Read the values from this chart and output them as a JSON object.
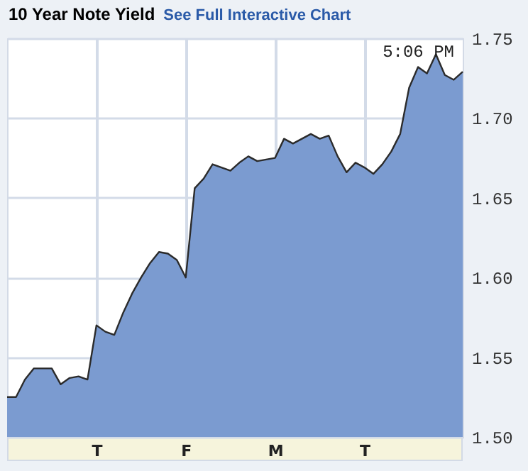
{
  "chart_data": {
    "type": "area",
    "title": "10 Year Note Yield",
    "subtitle": "See Full Interactive Chart",
    "annotations": [
      "5:06 PM"
    ],
    "categories": [
      null,
      null,
      null,
      null,
      null,
      null,
      null,
      null,
      null,
      null,
      "T",
      null,
      null,
      null,
      null,
      null,
      null,
      null,
      null,
      null,
      "F",
      null,
      null,
      null,
      null,
      null,
      null,
      null,
      null,
      null,
      "M",
      null,
      null,
      null,
      null,
      null,
      null,
      null,
      null,
      null,
      "T",
      null,
      null,
      null,
      null,
      null,
      null,
      null,
      null,
      null,
      null,
      null
    ],
    "series": [
      {
        "color": "#7b9bd0",
        "values": [
          1.525,
          1.525,
          1.536,
          1.543,
          1.543,
          1.543,
          1.533,
          1.537,
          1.538,
          1.536,
          1.57,
          1.566,
          1.564,
          1.578,
          1.59,
          1.6,
          1.609,
          1.616,
          1.615,
          1.611,
          1.6,
          1.656,
          1.662,
          1.671,
          1.669,
          1.667,
          1.672,
          1.676,
          1.673,
          1.674,
          1.675,
          1.687,
          1.684,
          1.687,
          1.69,
          1.687,
          1.689,
          1.676,
          1.666,
          1.672,
          1.669,
          1.665,
          1.671,
          1.679,
          1.69,
          1.719,
          1.732,
          1.728,
          1.74,
          1.727,
          1.724,
          1.729
        ]
      }
    ],
    "ylim": [
      1.5,
      1.75
    ],
    "yticks": [
      {
        "value": 1.5,
        "label": "1.50"
      },
      {
        "value": 1.55,
        "label": "1.55"
      },
      {
        "value": 1.6,
        "label": "1.60"
      },
      {
        "value": 1.65,
        "label": "1.65"
      },
      {
        "value": 1.7,
        "label": "1.70"
      },
      {
        "value": 1.75,
        "label": "1.75"
      }
    ],
    "grid": true
  }
}
